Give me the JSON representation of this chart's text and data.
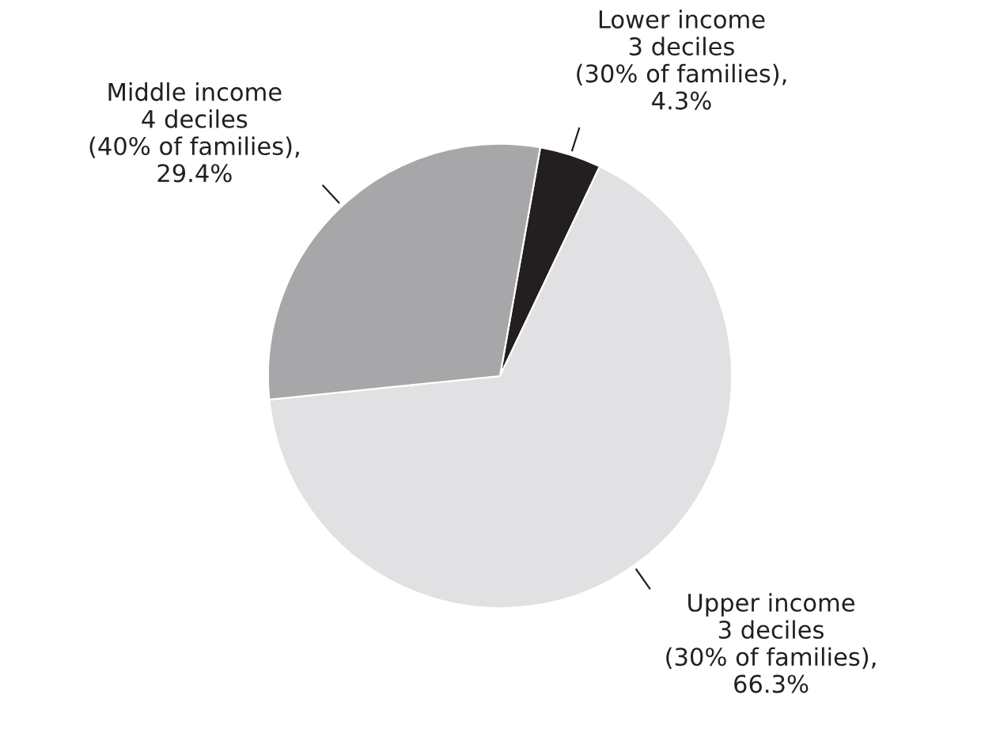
{
  "chart_data": {
    "type": "pie",
    "categories": [
      "Lower income\n3 deciles\n(30% of families),\n4.3%",
      "Upper income\n3 deciles\n(30% of families),\n66.3%",
      "Middle income\n4 deciles\n(40% of families),\n29.4%"
    ],
    "values": [
      4.3,
      66.3,
      29.4
    ],
    "colors": [
      "#231f20",
      "#e1e1e3",
      "#a7a7a9"
    ]
  }
}
